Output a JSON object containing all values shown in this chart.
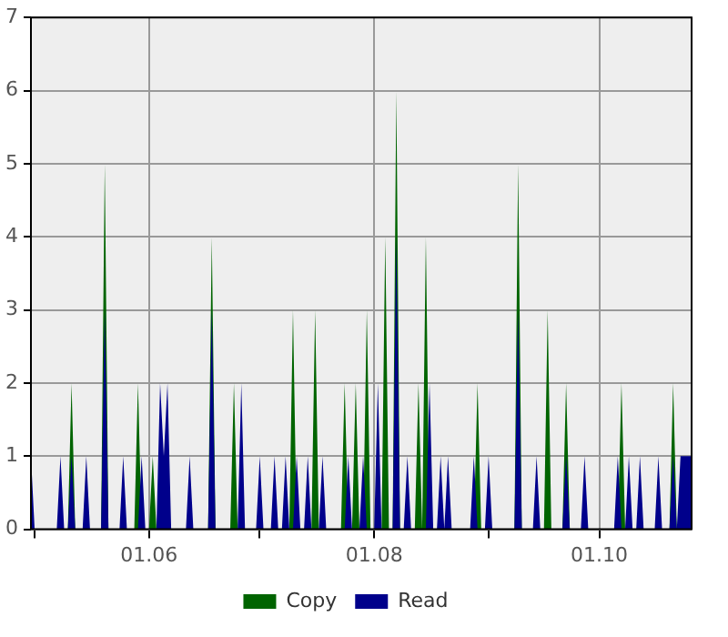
{
  "chart_data": {
    "type": "area",
    "xlim": [
      "--04-30",
      "--10-26"
    ],
    "xticks": [
      {
        "value": "--05-01",
        "label": null
      },
      {
        "value": "--06-01",
        "label": "01.06"
      },
      {
        "value": "--07-01",
        "label": null
      },
      {
        "value": "--08-01",
        "label": "01.08"
      },
      {
        "value": "--09-01",
        "label": null
      },
      {
        "value": "--10-01",
        "label": "01.10"
      }
    ],
    "ylim": [
      0,
      7
    ],
    "yticks": [
      0,
      1,
      2,
      3,
      4,
      5,
      6,
      7
    ],
    "grid": true,
    "legend": "bottom",
    "marker": "none",
    "series": [
      {
        "name": "Copy",
        "color": "#006400",
        "x": [
          "--04-30",
          "--05-10",
          "--05-11",
          "--05-12",
          "--05-19",
          "--05-20",
          "--05-21",
          "--05-28",
          "--05-29",
          "--05-30",
          "--06-01",
          "--06-02",
          "--06-03",
          "--06-17",
          "--06-18",
          "--06-19",
          "--06-23",
          "--06-24",
          "--06-25",
          "--07-09",
          "--07-10",
          "--07-11",
          "--07-15",
          "--07-16",
          "--07-17",
          "--07-23",
          "--07-24",
          "--07-25",
          "--07-26",
          "--07-27",
          "--07-28",
          "--07-29",
          "--07-30",
          "--07-31",
          "--08-03",
          "--08-04",
          "--08-05",
          "--08-06",
          "--08-07",
          "--08-08",
          "--08-12",
          "--08-13",
          "--08-14",
          "--08-15",
          "--08-16",
          "--08-28",
          "--08-29",
          "--08-30",
          "--09-08",
          "--09-09",
          "--09-10",
          "--09-16",
          "--09-17",
          "--09-18",
          "--09-21",
          "--09-22",
          "--09-23",
          "--10-06",
          "--10-07",
          "--10-08",
          "--10-20",
          "--10-21",
          "--10-22",
          "--10-26"
        ],
        "values": [
          0,
          0,
          2,
          0,
          0,
          5,
          0,
          0,
          2,
          0,
          0,
          1,
          0,
          0,
          4,
          0,
          0,
          2,
          0,
          0,
          3,
          0,
          0,
          3,
          0,
          0,
          2,
          0,
          0,
          2,
          0,
          0,
          3,
          0,
          0,
          4,
          0,
          0,
          6,
          0,
          0,
          2,
          0,
          4,
          0,
          0,
          2,
          0,
          0,
          5,
          0,
          0,
          3,
          0,
          0,
          2,
          0,
          0,
          2,
          0,
          0,
          2,
          0,
          0
        ]
      },
      {
        "name": "Read",
        "color": "#00008b",
        "x": [
          "--04-30",
          "--05-01",
          "--05-07",
          "--05-08",
          "--05-09",
          "--05-10",
          "--05-11",
          "--05-12",
          "--05-14",
          "--05-15",
          "--05-16",
          "--05-19",
          "--05-20",
          "--05-21",
          "--05-24",
          "--05-25",
          "--05-26",
          "--05-29",
          "--05-30",
          "--05-31",
          "--06-03",
          "--06-04",
          "--06-05",
          "--06-06",
          "--06-07",
          "--06-11",
          "--06-12",
          "--06-13",
          "--06-17",
          "--06-18",
          "--06-19",
          "--06-25",
          "--06-26",
          "--06-27",
          "--06-30",
          "--07-01",
          "--07-02",
          "--07-04",
          "--07-05",
          "--07-06",
          "--07-07",
          "--07-08",
          "--07-09",
          "--07-10",
          "--07-11",
          "--07-12",
          "--07-13",
          "--07-14",
          "--07-15",
          "--07-17",
          "--07-18",
          "--07-19",
          "--07-24",
          "--07-25",
          "--07-26",
          "--07-28",
          "--07-29",
          "--07-30",
          "--08-01",
          "--08-02",
          "--08-03",
          "--08-06",
          "--08-07",
          "--08-08",
          "--08-09",
          "--08-10",
          "--08-11",
          "--08-15",
          "--08-16",
          "--08-17",
          "--08-18",
          "--08-19",
          "--08-20",
          "--08-21",
          "--08-22",
          "--08-27",
          "--08-28",
          "--08-29",
          "--08-31",
          "--09-01",
          "--09-02",
          "--09-08",
          "--09-09",
          "--09-10",
          "--09-13",
          "--09-14",
          "--09-15",
          "--09-21",
          "--09-22",
          "--09-23",
          "--09-26",
          "--09-27",
          "--09-28",
          "--10-05",
          "--10-06",
          "--10-07",
          "--10-08",
          "--10-09",
          "--10-10",
          "--10-11",
          "--10-12",
          "--10-13",
          "--10-16",
          "--10-17",
          "--10-18",
          "--10-20",
          "--10-21",
          "--10-22",
          "--10-23",
          "--10-26"
        ],
        "values": [
          1,
          0,
          0,
          1,
          0,
          0,
          1,
          0,
          0,
          1,
          0,
          0,
          3,
          0,
          0,
          1,
          0,
          0,
          1,
          0,
          0,
          2,
          1,
          2,
          0,
          0,
          1,
          0,
          0,
          3,
          0,
          0,
          2,
          0,
          0,
          1,
          0,
          0,
          1,
          0,
          0,
          1,
          0,
          0,
          1,
          0,
          0,
          1,
          0,
          0,
          1,
          0,
          0,
          1,
          0,
          0,
          1,
          0,
          0,
          2,
          0,
          0,
          4,
          0,
          0,
          1,
          0,
          0,
          2,
          0,
          0,
          1,
          0,
          1,
          0,
          0,
          1,
          0,
          0,
          1,
          0,
          0,
          3,
          0,
          0,
          1,
          0,
          0,
          1,
          0,
          0,
          1,
          0,
          0,
          1,
          0,
          0,
          1,
          0,
          0,
          1,
          0,
          0,
          1,
          0,
          0,
          1,
          0,
          1,
          1
        ]
      }
    ]
  }
}
